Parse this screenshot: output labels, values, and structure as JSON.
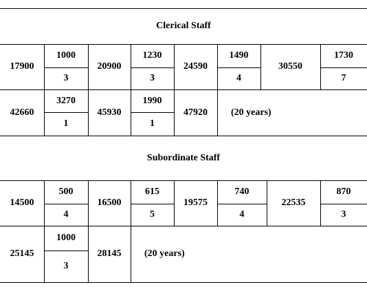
{
  "sections": [
    {
      "title": "Clerical Staff",
      "rows": [
        [
          17900,
          {
            "increment": 1000,
            "years": 3
          },
          20900,
          {
            "increment": 1230,
            "years": 3
          },
          24590,
          {
            "increment": 1490,
            "years": 4
          },
          30550,
          {
            "increment": 1730,
            "years": 7
          }
        ],
        [
          42660,
          {
            "increment": 3270,
            "years": 1
          },
          45930,
          {
            "increment": 1990,
            "years": 1
          },
          47920,
          "(20 years)"
        ]
      ]
    },
    {
      "title": "Subordinate Staff",
      "rows": [
        [
          14500,
          {
            "increment": 500,
            "years": 4
          },
          16500,
          {
            "increment": 615,
            "years": 5
          },
          19575,
          {
            "increment": 740,
            "years": 4
          },
          22535,
          {
            "increment": 870,
            "years": 3
          }
        ],
        [
          25145,
          {
            "increment": 1000,
            "years": 3
          },
          28145,
          "(20 years)"
        ]
      ]
    }
  ]
}
